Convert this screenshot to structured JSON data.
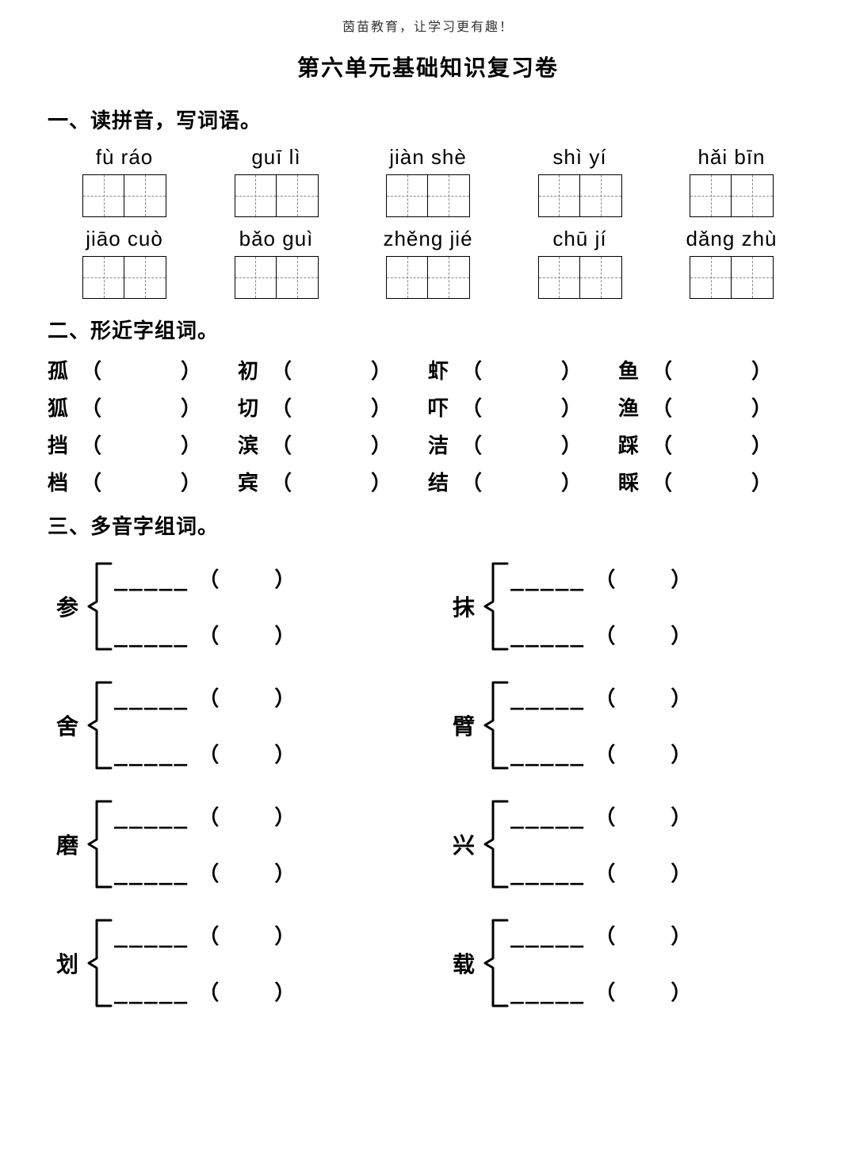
{
  "header_note": "茵苗教育，让学习更有趣！",
  "title": "第六单元基础知识复习卷",
  "section1": {
    "heading": "一、读拼音，写词语。",
    "row1": [
      "fù ráo",
      "guī lì",
      "jiàn shè",
      "shì yí",
      "hǎi bīn"
    ],
    "row2": [
      "jiāo cuò",
      "bǎo guì",
      "zhěng jié",
      "chū jí",
      "dǎng zhù"
    ]
  },
  "section2": {
    "heading": "二、形近字组词。",
    "rows": [
      [
        "孤",
        "初",
        "虾",
        "鱼"
      ],
      [
        "狐",
        "切",
        "吓",
        "渔"
      ],
      [
        "挡",
        "滨",
        "洁",
        "踩"
      ],
      [
        "档",
        "宾",
        "结",
        "睬"
      ]
    ]
  },
  "section3": {
    "heading": "三、多音字组词。",
    "pairs": [
      [
        "参",
        "抹"
      ],
      [
        "舍",
        "臂"
      ],
      [
        "磨",
        "兴"
      ],
      [
        "划",
        "载"
      ]
    ],
    "dash": "_____"
  },
  "paren_open": "（",
  "paren_close": "）"
}
